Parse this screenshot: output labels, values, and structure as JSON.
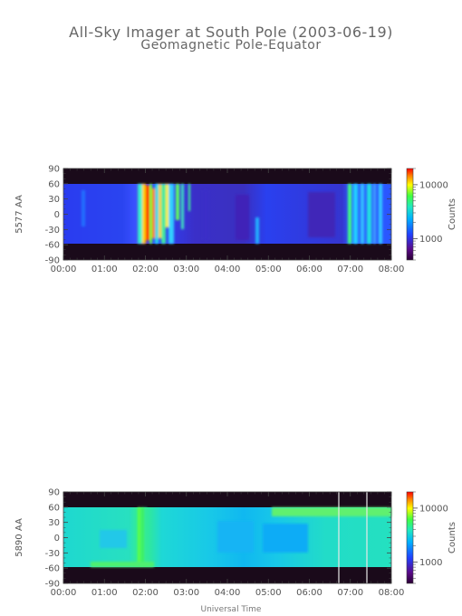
{
  "title": "All-Sky Imager at South Pole (2003-06-19)",
  "subtitle": "Geomagnetic Pole-Equator",
  "xlabel": "Universal Time",
  "chart_data": [
    {
      "type": "heatmap",
      "ylabel": "5577 AA",
      "colorbar_label": "Counts",
      "colorbar_ticks": [
        "10000",
        "1000"
      ],
      "colorbar_tick_values": [
        10000,
        1000
      ],
      "x_ticks": [
        "00:00",
        "01:00",
        "02:00",
        "03:00",
        "04:00",
        "05:00",
        "06:00",
        "07:00",
        "08:00"
      ],
      "y_ticks": [
        "90",
        "60",
        "30",
        "0",
        "-30",
        "-60",
        "-90"
      ],
      "y_tick_values": [
        90,
        60,
        30,
        0,
        -30,
        -60,
        -90
      ],
      "xlim_hours": [
        0,
        8
      ],
      "ylim": [
        -90,
        90
      ],
      "colorbar_range": [
        400,
        20000
      ],
      "colorbar_scale": "log"
    },
    {
      "type": "heatmap",
      "ylabel": "5890 AA",
      "colorbar_label": "Counts",
      "colorbar_ticks": [
        "10000",
        "1000"
      ],
      "colorbar_tick_values": [
        10000,
        1000
      ],
      "x_ticks": [
        "00:00",
        "01:00",
        "02:00",
        "03:00",
        "04:00",
        "05:00",
        "06:00",
        "07:00",
        "08:00"
      ],
      "y_ticks": [
        "90",
        "60",
        "30",
        "0",
        "-30",
        "-60",
        "-90"
      ],
      "y_tick_values": [
        90,
        60,
        30,
        0,
        -30,
        -60,
        -90
      ],
      "xlim_hours": [
        0,
        8
      ],
      "ylim": [
        -90,
        90
      ],
      "colorbar_range": [
        400,
        20000
      ],
      "colorbar_scale": "log"
    }
  ]
}
